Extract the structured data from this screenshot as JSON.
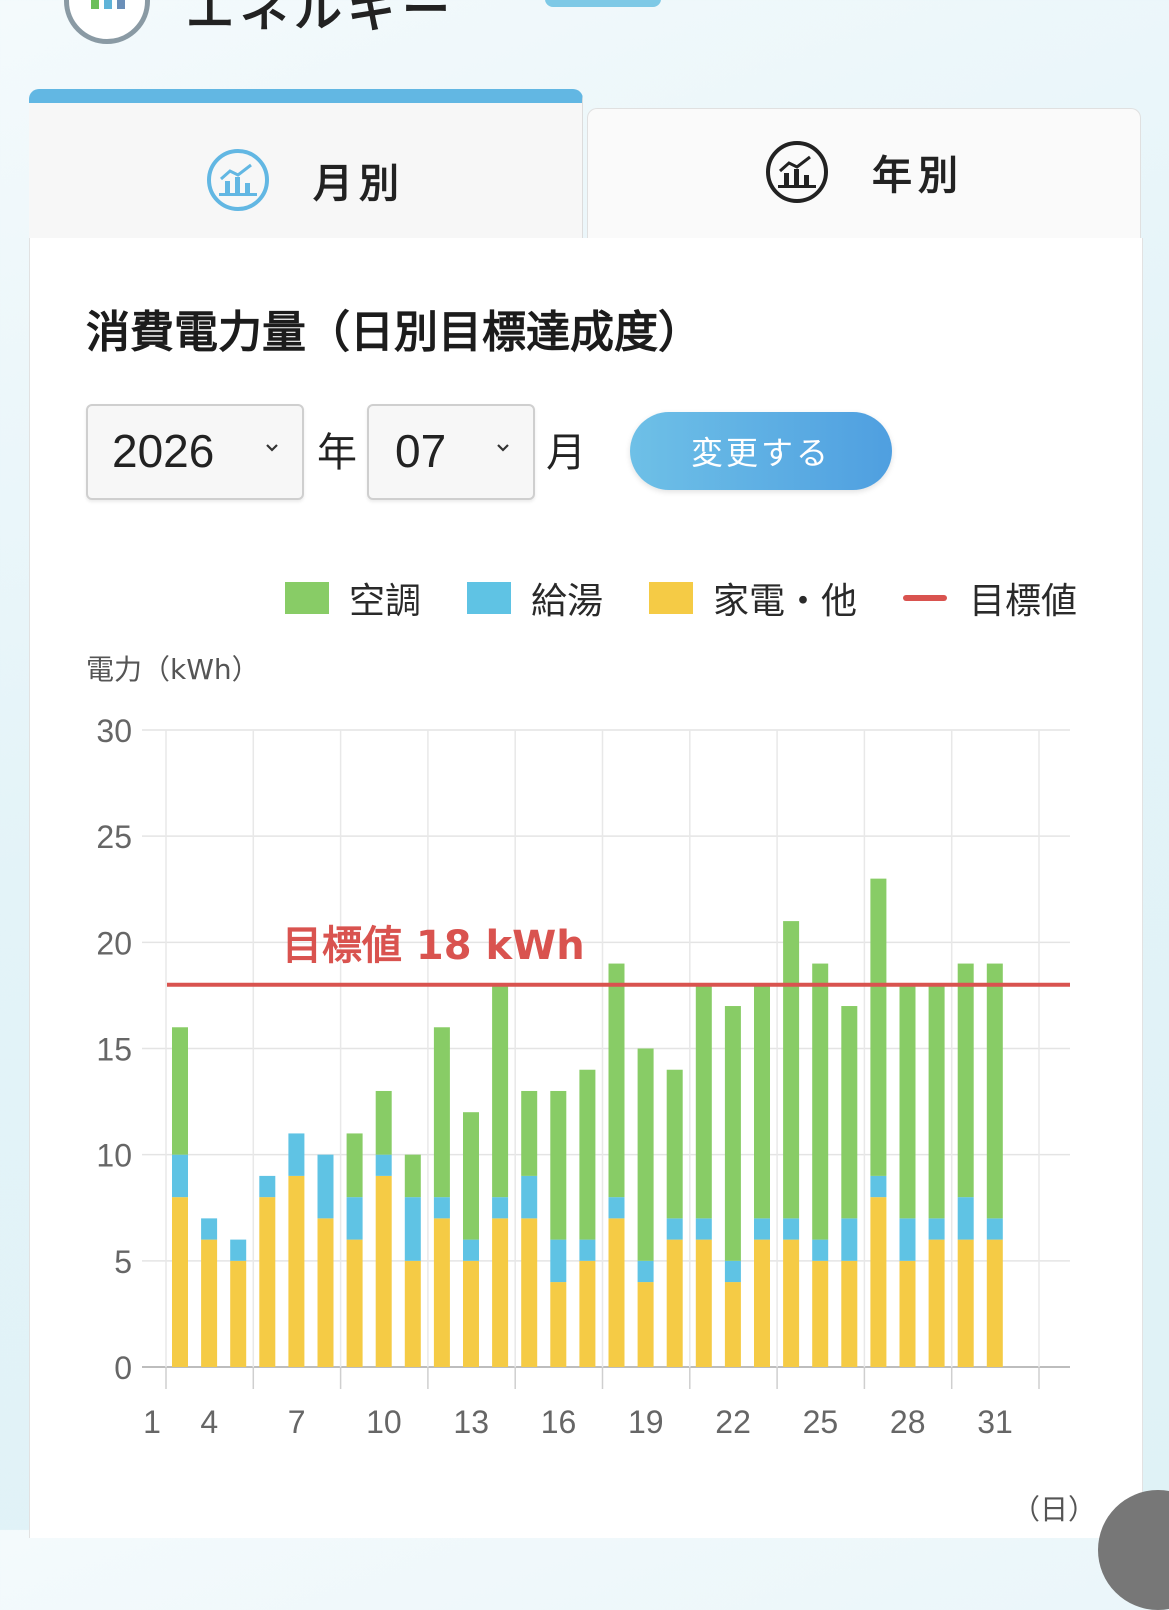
{
  "header": {
    "title": "エネルギー"
  },
  "tabs": [
    {
      "label": "月別",
      "icon": "chart-circle-icon",
      "active": true
    },
    {
      "label": "年別",
      "icon": "chart-circle-icon",
      "active": false
    }
  ],
  "card": {
    "title": "消費電力量（日別目標達成度）",
    "year_value": "2026",
    "year_unit": "年",
    "month_value": "07",
    "month_unit": "月",
    "change_button": "変更する"
  },
  "colors": {
    "aircon": "#88cc66",
    "water": "#5fc3e4",
    "appliance": "#f5cb45",
    "target": "#d9534f",
    "accent": "#62b7e3"
  },
  "chart_data": {
    "type": "bar",
    "stacked": true,
    "ylabel": "電力（kWh）",
    "xlabel": "（日）",
    "ylim": [
      0,
      30
    ],
    "yticks": [
      0,
      5,
      10,
      15,
      20,
      25,
      30
    ],
    "xticks": [
      1,
      4,
      7,
      10,
      13,
      16,
      19,
      22,
      25,
      28,
      31
    ],
    "x": [
      1,
      2,
      3,
      4,
      5,
      6,
      7,
      8,
      9,
      10,
      11,
      12,
      13,
      14,
      15,
      16,
      17,
      18,
      19,
      20,
      21,
      22,
      23,
      24,
      25,
      26,
      27,
      28,
      29
    ],
    "series": [
      {
        "name": "家電・他",
        "color": "#f5cb45",
        "values": [
          8,
          6,
          5,
          8,
          9,
          7,
          6,
          9,
          5,
          7,
          5,
          7,
          7,
          4,
          5,
          7,
          4,
          6,
          6,
          4,
          6,
          6,
          5,
          5,
          8,
          5,
          6,
          6,
          6
        ]
      },
      {
        "name": "給湯",
        "color": "#5fc3e4",
        "values": [
          2,
          1,
          1,
          1,
          2,
          3,
          2,
          1,
          3,
          1,
          1,
          1,
          2,
          2,
          1,
          1,
          1,
          1,
          1,
          1,
          1,
          1,
          1,
          2,
          1,
          2,
          1,
          2,
          1
        ]
      },
      {
        "name": "空調",
        "color": "#88cc66",
        "values": [
          6,
          0,
          0,
          0,
          0,
          0,
          3,
          3,
          2,
          8,
          6,
          10,
          4,
          7,
          8,
          11,
          10,
          7,
          11,
          12,
          11,
          14,
          13,
          10,
          14,
          11,
          11,
          11,
          12
        ]
      }
    ],
    "target": {
      "name": "目標値",
      "value": 18,
      "label": "目標値 18 kWh"
    },
    "grid": true,
    "legend_position": "top-right"
  }
}
